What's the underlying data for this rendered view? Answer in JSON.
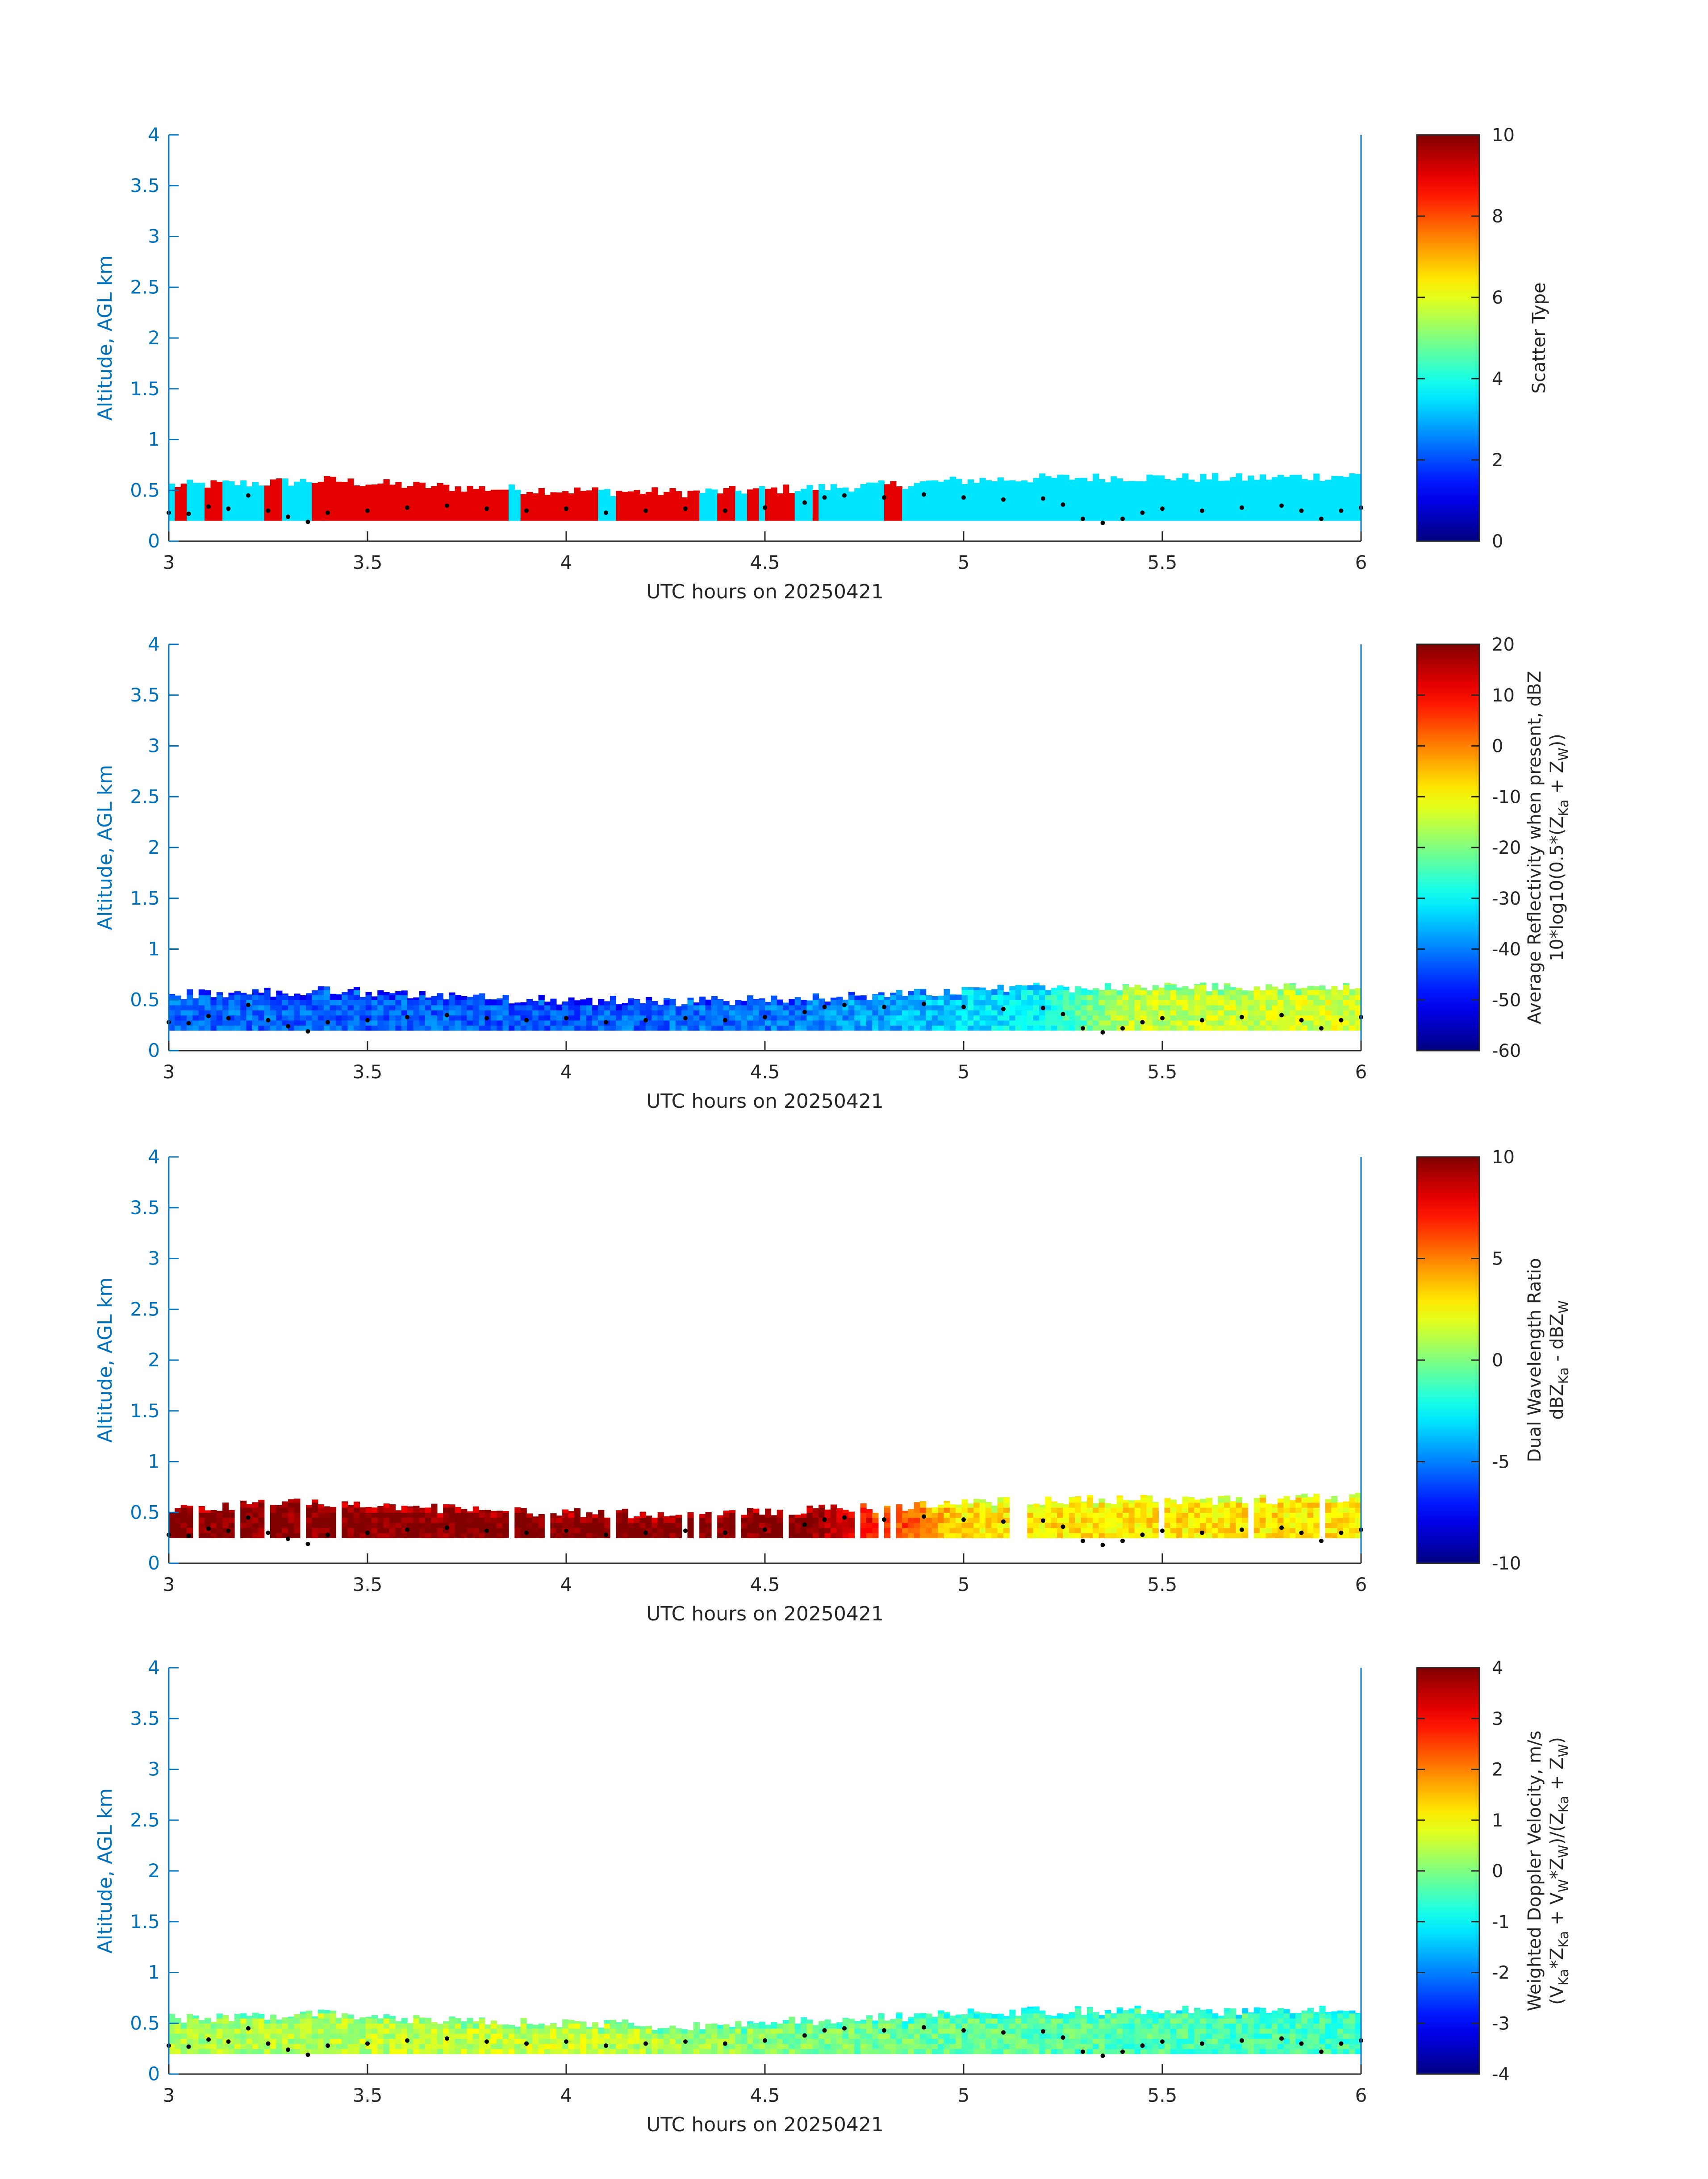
{
  "figure": {
    "colors": {
      "axis": "#0072bd",
      "text": "#262626",
      "scatter_low": "#40f0e0",
      "scatter_high": "#ff4a1a",
      "marker": "#000000"
    }
  },
  "chart_data": [
    {
      "id": "scatter",
      "type": "heatmap",
      "xlabel": "UTC hours on 20250421",
      "ylabel": "Altitude, AGL km",
      "xlim": [
        3,
        6
      ],
      "ylim": [
        0,
        4
      ],
      "x_ticks": [
        "3",
        "3.5",
        "4",
        "4.5",
        "5",
        "5.5",
        "6"
      ],
      "y_ticks": [
        "0",
        "0.5",
        "1",
        "1.5",
        "2",
        "2.5",
        "3",
        "3.5",
        "4"
      ],
      "colorbar": {
        "label": "Scatter Type",
        "clim": [
          0,
          10
        ],
        "ticks": [
          "0",
          "2",
          "4",
          "6",
          "8",
          "10"
        ]
      },
      "layer_bottom_km": 0.2,
      "segments": [
        {
          "start": 3.0,
          "end": 3.02,
          "value": 3.5
        },
        {
          "start": 3.02,
          "end": 3.05,
          "value": 9
        },
        {
          "start": 3.05,
          "end": 3.09,
          "value": 3.5
        },
        {
          "start": 3.09,
          "end": 3.14,
          "value": 9
        },
        {
          "start": 3.14,
          "end": 3.24,
          "value": 3.5
        },
        {
          "start": 3.24,
          "end": 3.28,
          "value": 9
        },
        {
          "start": 3.28,
          "end": 3.36,
          "value": 3.5
        },
        {
          "start": 3.36,
          "end": 3.86,
          "value": 9
        },
        {
          "start": 3.86,
          "end": 3.88,
          "value": 3.5
        },
        {
          "start": 3.88,
          "end": 4.08,
          "value": 9
        },
        {
          "start": 4.08,
          "end": 4.13,
          "value": 3.5
        },
        {
          "start": 4.13,
          "end": 4.34,
          "value": 9
        },
        {
          "start": 4.34,
          "end": 4.38,
          "value": 3.5
        },
        {
          "start": 4.38,
          "end": 4.43,
          "value": 9
        },
        {
          "start": 4.43,
          "end": 4.46,
          "value": 3.5
        },
        {
          "start": 4.46,
          "end": 4.48,
          "value": 9
        },
        {
          "start": 4.48,
          "end": 4.5,
          "value": 3.5
        },
        {
          "start": 4.5,
          "end": 4.58,
          "value": 9
        },
        {
          "start": 4.58,
          "end": 4.62,
          "value": 3.5
        },
        {
          "start": 4.62,
          "end": 4.64,
          "value": 9
        },
        {
          "start": 4.64,
          "end": 4.8,
          "value": 3.5
        },
        {
          "start": 4.8,
          "end": 4.84,
          "value": 9
        },
        {
          "start": 4.84,
          "end": 6.0,
          "value": 3.5
        }
      ]
    },
    {
      "id": "reflectivity",
      "type": "heatmap",
      "xlabel": "UTC hours on 20250421",
      "ylabel": "Altitude, AGL km",
      "xlim": [
        3,
        6
      ],
      "ylim": [
        0,
        4
      ],
      "x_ticks": [
        "3",
        "3.5",
        "4",
        "4.5",
        "5",
        "5.5",
        "6"
      ],
      "y_ticks": [
        "0",
        "0.5",
        "1",
        "1.5",
        "2",
        "2.5",
        "3",
        "3.5",
        "4"
      ],
      "colorbar": {
        "label": "Average Reflectivity when present, dBZ",
        "label2_parts": [
          "10*log10(0.5*(Z",
          "Ka",
          " + Z",
          "W",
          "))"
        ],
        "clim": [
          -60,
          20
        ],
        "ticks": [
          "-60",
          "-50",
          "-40",
          "-30",
          "-20",
          "-10",
          "0",
          "10",
          "20"
        ]
      },
      "layer_bottom_km": 0.2,
      "value_trend": [
        {
          "x": 3.0,
          "value": -42
        },
        {
          "x": 4.0,
          "value": -43
        },
        {
          "x": 4.6,
          "value": -40
        },
        {
          "x": 5.0,
          "value": -33
        },
        {
          "x": 5.2,
          "value": -30
        },
        {
          "x": 5.4,
          "value": -15
        },
        {
          "x": 6.0,
          "value": -13
        }
      ]
    },
    {
      "id": "dwr",
      "type": "heatmap",
      "xlabel": "UTC hours on 20250421",
      "ylabel": "Altitude, AGL km",
      "xlim": [
        3,
        6
      ],
      "ylim": [
        0,
        4
      ],
      "x_ticks": [
        "3",
        "3.5",
        "4",
        "4.5",
        "5",
        "5.5",
        "6"
      ],
      "y_ticks": [
        "0",
        "0.5",
        "1",
        "1.5",
        "2",
        "2.5",
        "3",
        "3.5",
        "4"
      ],
      "colorbar": {
        "label": "Dual Wavelength Ratio",
        "label2_parts": [
          "dBZ",
          "Ka",
          " - dBZ",
          "W"
        ],
        "clim": [
          -10,
          10
        ],
        "ticks": [
          "-10",
          "-5",
          "0",
          "5",
          "10"
        ]
      },
      "layer_bottom_km": 0.25,
      "value_trend": [
        {
          "x": 3.0,
          "value": 10
        },
        {
          "x": 4.6,
          "value": 10
        },
        {
          "x": 4.85,
          "value": 6
        },
        {
          "x": 5.0,
          "value": 3
        },
        {
          "x": 6.0,
          "value": 3
        }
      ]
    },
    {
      "id": "doppler",
      "type": "heatmap",
      "xlabel": "UTC hours on 20250421",
      "ylabel": "Altitude, AGL km",
      "xlim": [
        3,
        6
      ],
      "ylim": [
        0,
        4
      ],
      "x_ticks": [
        "3",
        "3.5",
        "4",
        "4.5",
        "5",
        "5.5",
        "6"
      ],
      "y_ticks": [
        "0",
        "0.5",
        "1",
        "1.5",
        "2",
        "2.5",
        "3",
        "3.5",
        "4"
      ],
      "colorbar": {
        "label": "Weighted Doppler Velocity, m/s",
        "label2_parts": [
          "(V",
          "Ka",
          "*Z",
          "Ka",
          " + V",
          "W",
          "*Z",
          "W",
          ")/(Z",
          "Ka",
          " + Z",
          "W",
          ")"
        ],
        "clim": [
          -4,
          4
        ],
        "ticks": [
          "-4",
          "-3",
          "-2",
          "-1",
          "0",
          "1",
          "2",
          "3",
          "4"
        ]
      },
      "layer_bottom_km": 0.2,
      "value_trend": [
        {
          "x": 3.0,
          "value": 0.3
        },
        {
          "x": 4.0,
          "value": 0.6
        },
        {
          "x": 4.6,
          "value": 0.0
        },
        {
          "x": 5.2,
          "value": -0.3
        },
        {
          "x": 6.0,
          "value": -0.5
        }
      ]
    }
  ],
  "cloud_top_km": [
    {
      "x": 3.0,
      "y": 0.55
    },
    {
      "x": 3.2,
      "y": 0.57
    },
    {
      "x": 3.4,
      "y": 0.6
    },
    {
      "x": 3.6,
      "y": 0.55
    },
    {
      "x": 3.8,
      "y": 0.52
    },
    {
      "x": 4.0,
      "y": 0.5
    },
    {
      "x": 4.3,
      "y": 0.48
    },
    {
      "x": 4.6,
      "y": 0.52
    },
    {
      "x": 4.8,
      "y": 0.55
    },
    {
      "x": 5.0,
      "y": 0.6
    },
    {
      "x": 5.2,
      "y": 0.62
    },
    {
      "x": 5.4,
      "y": 0.63
    },
    {
      "x": 5.7,
      "y": 0.62
    },
    {
      "x": 6.0,
      "y": 0.65
    }
  ],
  "marker_points_km": [
    {
      "x": 3.0,
      "y": 0.28
    },
    {
      "x": 3.05,
      "y": 0.27
    },
    {
      "x": 3.1,
      "y": 0.34
    },
    {
      "x": 3.15,
      "y": 0.32
    },
    {
      "x": 3.2,
      "y": 0.45
    },
    {
      "x": 3.25,
      "y": 0.3
    },
    {
      "x": 3.3,
      "y": 0.24
    },
    {
      "x": 3.35,
      "y": 0.19
    },
    {
      "x": 3.4,
      "y": 0.28
    },
    {
      "x": 3.5,
      "y": 0.3
    },
    {
      "x": 3.6,
      "y": 0.33
    },
    {
      "x": 3.7,
      "y": 0.35
    },
    {
      "x": 3.8,
      "y": 0.32
    },
    {
      "x": 3.9,
      "y": 0.3
    },
    {
      "x": 4.0,
      "y": 0.32
    },
    {
      "x": 4.1,
      "y": 0.28
    },
    {
      "x": 4.2,
      "y": 0.3
    },
    {
      "x": 4.3,
      "y": 0.32
    },
    {
      "x": 4.4,
      "y": 0.3
    },
    {
      "x": 4.5,
      "y": 0.33
    },
    {
      "x": 4.6,
      "y": 0.38
    },
    {
      "x": 4.65,
      "y": 0.43
    },
    {
      "x": 4.7,
      "y": 0.45
    },
    {
      "x": 4.8,
      "y": 0.43
    },
    {
      "x": 4.9,
      "y": 0.46
    },
    {
      "x": 5.0,
      "y": 0.43
    },
    {
      "x": 5.1,
      "y": 0.41
    },
    {
      "x": 5.2,
      "y": 0.42
    },
    {
      "x": 5.25,
      "y": 0.36
    },
    {
      "x": 5.3,
      "y": 0.22
    },
    {
      "x": 5.35,
      "y": 0.18
    },
    {
      "x": 5.4,
      "y": 0.22
    },
    {
      "x": 5.45,
      "y": 0.28
    },
    {
      "x": 5.5,
      "y": 0.32
    },
    {
      "x": 5.6,
      "y": 0.3
    },
    {
      "x": 5.7,
      "y": 0.33
    },
    {
      "x": 5.8,
      "y": 0.35
    },
    {
      "x": 5.85,
      "y": 0.3
    },
    {
      "x": 5.9,
      "y": 0.22
    },
    {
      "x": 5.95,
      "y": 0.3
    },
    {
      "x": 6.0,
      "y": 0.33
    }
  ]
}
